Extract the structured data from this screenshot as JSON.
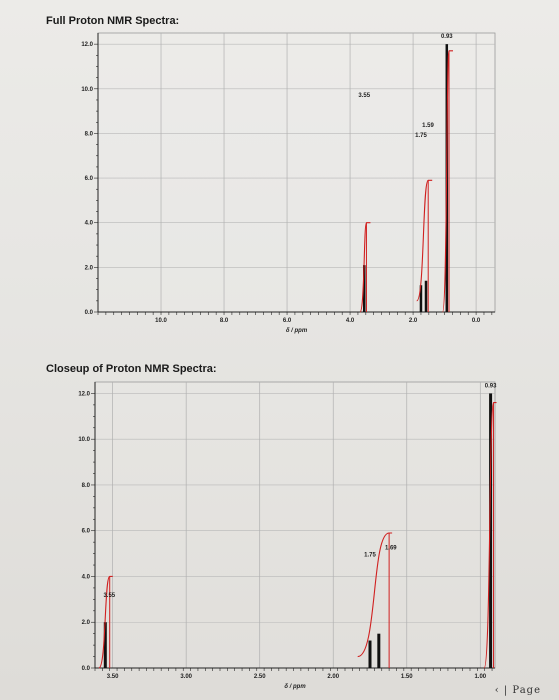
{
  "chart_data": [
    {
      "type": "line",
      "title": "Full Proton NMR Spectra:",
      "xlabel": "δ / ppm",
      "ylabel": "",
      "xlim": [
        12.0,
        -0.6
      ],
      "ylim": [
        0.0,
        12.5
      ],
      "x_reversed": true,
      "grid": true,
      "x_ticks": [
        "10.0",
        "8.0",
        "6.0",
        "4.0",
        "2.0",
        "0.0"
      ],
      "x_tick_values": [
        10.0,
        8.0,
        6.0,
        4.0,
        2.0,
        0.0
      ],
      "y_ticks": [
        "12.0",
        "10.0",
        "8.0",
        "6.0",
        "4.0",
        "2.0",
        "0.0"
      ],
      "y_tick_values": [
        12.0,
        10.0,
        8.0,
        6.0,
        4.0,
        2.0,
        0.0
      ],
      "peaks": [
        {
          "x": 3.55,
          "y": 2.1,
          "label": "3.55"
        },
        {
          "x": 1.75,
          "y": 1.2,
          "label": "1.75"
        },
        {
          "x": 1.59,
          "y": 1.4,
          "label": "1.59"
        },
        {
          "x": 0.93,
          "y": 12.0,
          "label": "0.93"
        }
      ],
      "integration": [
        {
          "x_from": 3.62,
          "x_to": 3.48,
          "y_from": 0.0,
          "y_to": 4.0
        },
        {
          "x_from": 1.82,
          "x_to": 1.52,
          "y_from": 0.5,
          "y_to": 5.9
        },
        {
          "x_from": 1.0,
          "x_to": 0.86,
          "y_from": 0.0,
          "y_to": 11.7
        }
      ]
    },
    {
      "type": "line",
      "title": "Closeup of Proton NMR Spectra:",
      "xlabel": "δ / ppm",
      "ylabel": "",
      "xlim": [
        3.62,
        0.9
      ],
      "ylim": [
        0.0,
        12.5
      ],
      "x_reversed": true,
      "grid": true,
      "x_ticks": [
        "3.50",
        "3.00",
        "2.50",
        "2.00",
        "1.50",
        "1.00"
      ],
      "x_tick_values": [
        3.5,
        3.0,
        2.5,
        2.0,
        1.5,
        1.0
      ],
      "y_ticks": [
        "12.0",
        "10.0",
        "8.0",
        "6.0",
        "4.0",
        "2.0",
        "0.0"
      ],
      "y_tick_values": [
        12.0,
        10.0,
        8.0,
        6.0,
        4.0,
        2.0,
        0.0
      ],
      "peaks": [
        {
          "x": 3.55,
          "y": 2.0,
          "label": "3.55"
        },
        {
          "x": 1.75,
          "y": 1.2,
          "label": "1.75"
        },
        {
          "x": 1.69,
          "y": 1.5,
          "label": "1.69"
        },
        {
          "x": 0.93,
          "y": 12.0,
          "label": "0.93"
        }
      ],
      "integration": [
        {
          "x_from": 3.58,
          "x_to": 3.52,
          "y_from": 0.0,
          "y_to": 4.0
        },
        {
          "x_from": 1.82,
          "x_to": 1.62,
          "y_from": 0.5,
          "y_to": 5.9
        },
        {
          "x_from": 0.96,
          "x_to": 0.91,
          "y_from": 0.0,
          "y_to": 11.6
        }
      ]
    }
  ],
  "footer": {
    "page_text": "‹ | Page"
  }
}
